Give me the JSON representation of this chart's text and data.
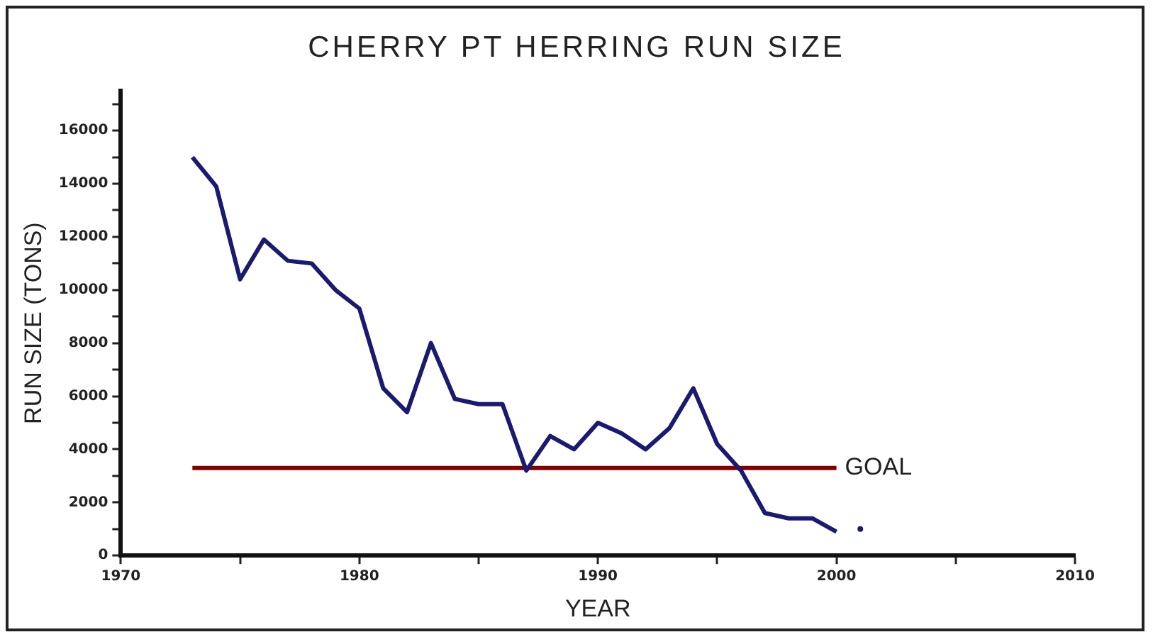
{
  "chart_data": {
    "type": "line",
    "title": "CHERRY PT HERRING RUN SIZE",
    "xlabel": "YEAR",
    "ylabel": "RUN SIZE (TONS)",
    "series": [
      {
        "color": "#1a1a6e",
        "x": [
          1973,
          1974,
          1975,
          1976,
          1977,
          1978,
          1979,
          1980,
          1981,
          1982,
          1983,
          1984,
          1985,
          1986,
          1987,
          1988,
          1989,
          1990,
          1991,
          1992,
          1993,
          1994,
          1995,
          1996,
          1997,
          1998,
          1999,
          2000
        ],
        "values": [
          15000,
          13900,
          10400,
          11900,
          11100,
          11000,
          10000,
          9300,
          6300,
          5400,
          8000,
          5900,
          5700,
          5700,
          3200,
          4500,
          4000,
          5000,
          4600,
          4000,
          4800,
          6300,
          4200,
          3200,
          1600,
          1400,
          1400,
          900
        ]
      },
      {
        "type": "scatter",
        "marker": "circle",
        "color": "#1a1a6e",
        "x": [
          2001
        ],
        "values": [
          1000
        ]
      },
      {
        "name": "GOAL",
        "color": "#800000",
        "x": [
          1973,
          2000
        ],
        "values": [
          3300,
          3300
        ]
      }
    ],
    "xlim": [
      1970,
      2010
    ],
    "xticks": [
      1970,
      {
        "value": 1975,
        "label": null
      },
      1980,
      {
        "value": 1985,
        "label": null
      },
      1990,
      {
        "value": 1995,
        "label": null
      },
      2000,
      {
        "value": 2005,
        "label": null
      },
      2010
    ],
    "ylim": [
      0,
      17500
    ],
    "yticks": [
      0,
      {
        "value": 1000,
        "label": null
      },
      2000,
      {
        "value": 3000,
        "label": null
      },
      4000,
      {
        "value": 5000,
        "label": null
      },
      6000,
      {
        "value": 7000,
        "label": null
      },
      8000,
      {
        "value": 9000,
        "label": null
      },
      10000,
      {
        "value": 11000,
        "label": null
      },
      12000,
      {
        "value": 13000,
        "label": null
      },
      14000,
      {
        "value": 15000,
        "label": null
      },
      16000,
      {
        "value": 17000,
        "label": null
      }
    ],
    "grid": false,
    "legend": false,
    "marker": "none",
    "line_style": "solid"
  }
}
